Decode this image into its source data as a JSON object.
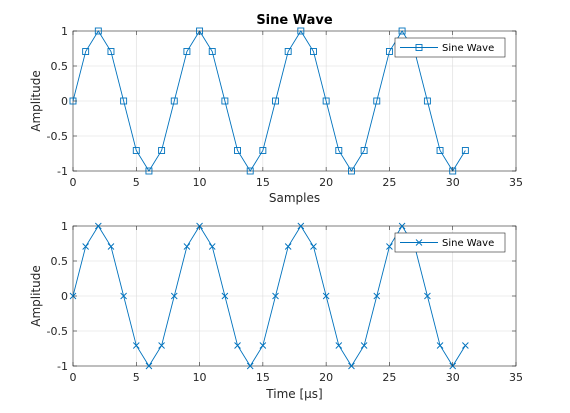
{
  "chart_data": [
    {
      "type": "line",
      "title": "Sine Wave",
      "xlabel": "Samples",
      "ylabel": "Amplitude",
      "xlim": [
        0,
        35
      ],
      "ylim": [
        -1,
        1
      ],
      "xticks": [
        "0",
        "5",
        "10",
        "15",
        "20",
        "25",
        "30",
        "35"
      ],
      "yticks": [
        "-1",
        "-0.5",
        "0",
        "0.5",
        "1"
      ],
      "grid": true,
      "legend": "top-right",
      "marker": "square",
      "color": "#0072BD",
      "series": [
        {
          "name": "Sine Wave",
          "x": [
            0,
            1,
            2,
            3,
            4,
            5,
            6,
            7,
            8,
            9,
            10,
            11,
            12,
            13,
            14,
            15,
            16,
            17,
            18,
            19,
            20,
            21,
            22,
            23,
            24,
            25,
            26,
            27,
            28,
            29,
            30,
            31
          ],
          "y": [
            0,
            0.7071,
            1,
            0.7071,
            0,
            -0.7071,
            -1,
            -0.7071,
            0,
            0.7071,
            1,
            0.7071,
            0,
            -0.7071,
            -1,
            -0.7071,
            0,
            0.7071,
            1,
            0.7071,
            0,
            -0.7071,
            -1,
            -0.7071,
            0,
            0.7071,
            1,
            0.7071,
            0,
            -0.7071,
            -1,
            -0.7071
          ]
        }
      ]
    },
    {
      "type": "line",
      "title": "",
      "xlabel": "Time [μs]",
      "ylabel": "Amplitude",
      "xlim": [
        0,
        35
      ],
      "ylim": [
        -1,
        1
      ],
      "xticks": [
        "0",
        "5",
        "10",
        "15",
        "20",
        "25",
        "30",
        "35"
      ],
      "yticks": [
        "-1",
        "-0.5",
        "0",
        "0.5",
        "1"
      ],
      "grid": true,
      "legend": "top-right",
      "marker": "x",
      "color": "#0072BD",
      "series": [
        {
          "name": "Sine Wave",
          "x": [
            0,
            1,
            2,
            3,
            4,
            5,
            6,
            7,
            8,
            9,
            10,
            11,
            12,
            13,
            14,
            15,
            16,
            17,
            18,
            19,
            20,
            21,
            22,
            23,
            24,
            25,
            26,
            27,
            28,
            29,
            30,
            31
          ],
          "y": [
            0,
            0.7071,
            1,
            0.7071,
            0,
            -0.7071,
            -1,
            -0.7071,
            0,
            0.7071,
            1,
            0.7071,
            0,
            -0.7071,
            -1,
            -0.7071,
            0,
            0.7071,
            1,
            0.7071,
            0,
            -0.7071,
            -1,
            -0.7071,
            0,
            0.7071,
            1,
            0.7071,
            0,
            -0.7071,
            -1,
            -0.7071
          ]
        }
      ]
    }
  ]
}
